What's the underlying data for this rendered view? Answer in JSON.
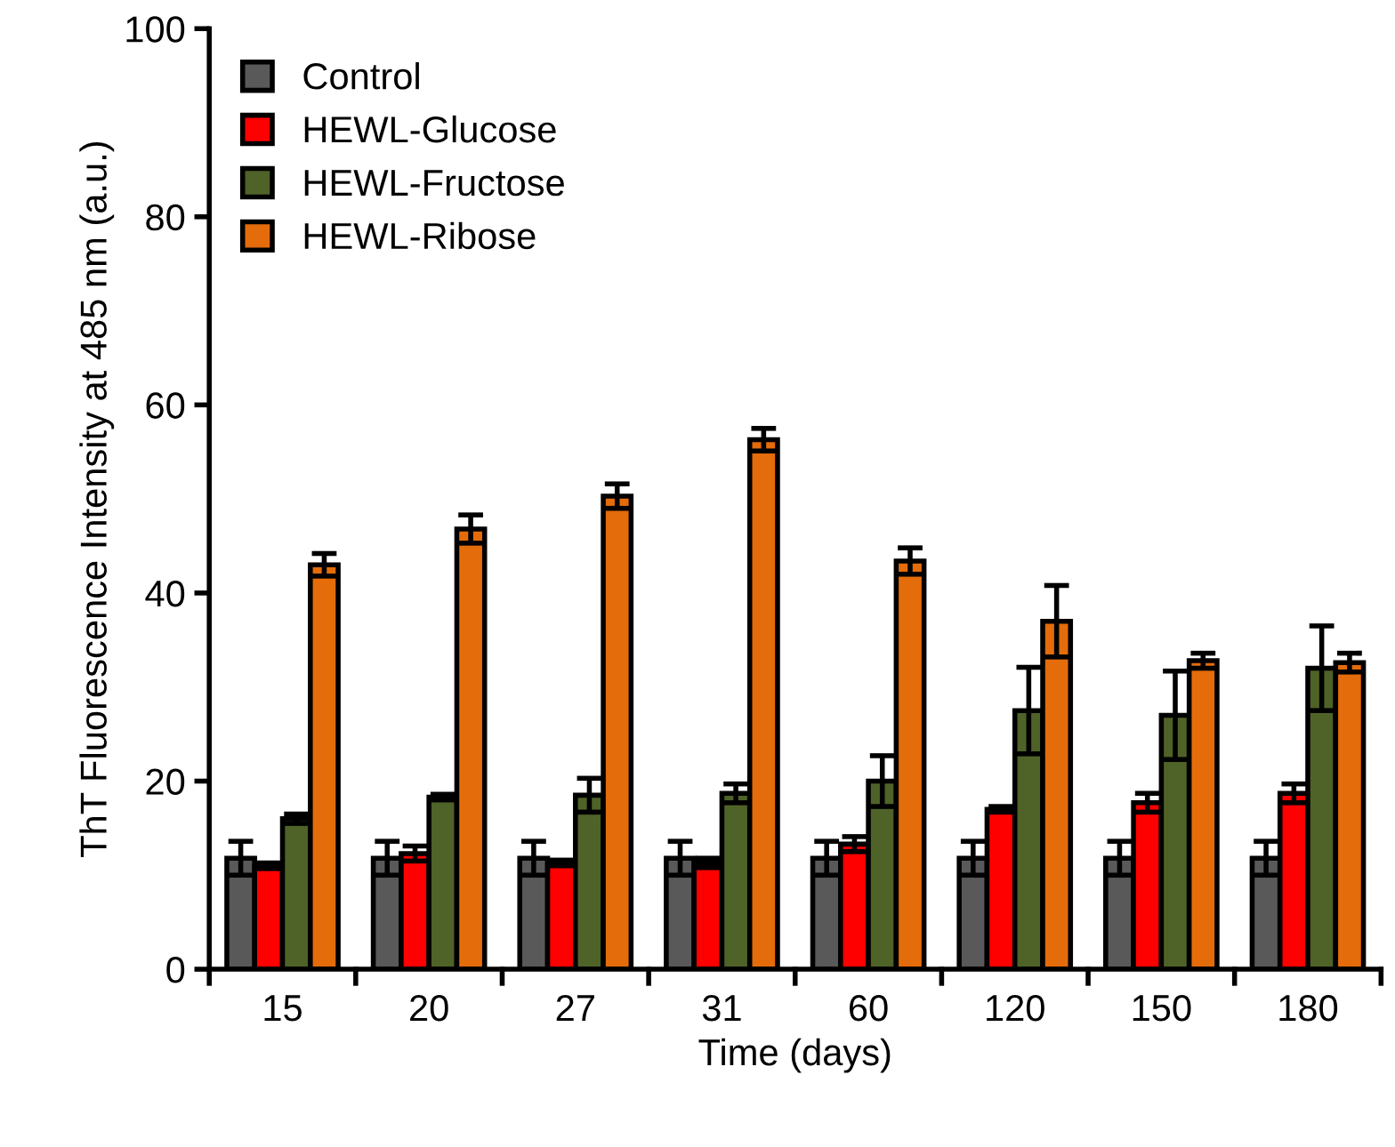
{
  "chart_data": {
    "type": "bar",
    "xlabel": "Time (days)",
    "ylabel": "ThT Fluorescence Intensity at 485 nm (a.u.)",
    "categories": [
      "15",
      "20",
      "27",
      "31",
      "60",
      "120",
      "150",
      "180"
    ],
    "series": [
      {
        "name": "Control",
        "color": "#595959",
        "values": [
          11.8,
          11.8,
          11.8,
          11.8,
          11.8,
          11.8,
          11.8,
          11.8
        ],
        "errors": [
          1.8,
          1.8,
          1.8,
          1.8,
          1.8,
          1.8,
          1.8,
          1.8
        ]
      },
      {
        "name": "HEWL-Glucose",
        "color": "#ff0000",
        "values": [
          11,
          12.3,
          11.3,
          11.3,
          13.3,
          17,
          17.7,
          18.7
        ],
        "errors": [
          0.3,
          0.8,
          0.3,
          0.5,
          0.8,
          0.3,
          1,
          1
        ]
      },
      {
        "name": "HEWL-Fructose",
        "color": "#4f6228",
        "values": [
          16,
          18.3,
          18.5,
          18.7,
          20,
          27.5,
          27,
          32
        ],
        "errors": [
          0.5,
          0.3,
          1.8,
          1,
          2.7,
          4.6,
          4.7,
          4.5
        ]
      },
      {
        "name": "HEWL-Ribose",
        "color": "#e46c0a",
        "values": [
          43,
          46.8,
          50.3,
          56.3,
          43.4,
          37,
          32.8,
          32.6
        ],
        "errors": [
          1.2,
          1.5,
          1.3,
          1.2,
          1.4,
          3.8,
          0.8,
          1
        ]
      }
    ],
    "ylim": [
      0,
      100
    ],
    "yticks": [
      0,
      20,
      40,
      60,
      80,
      100
    ],
    "grid": false,
    "legend": "top left"
  }
}
